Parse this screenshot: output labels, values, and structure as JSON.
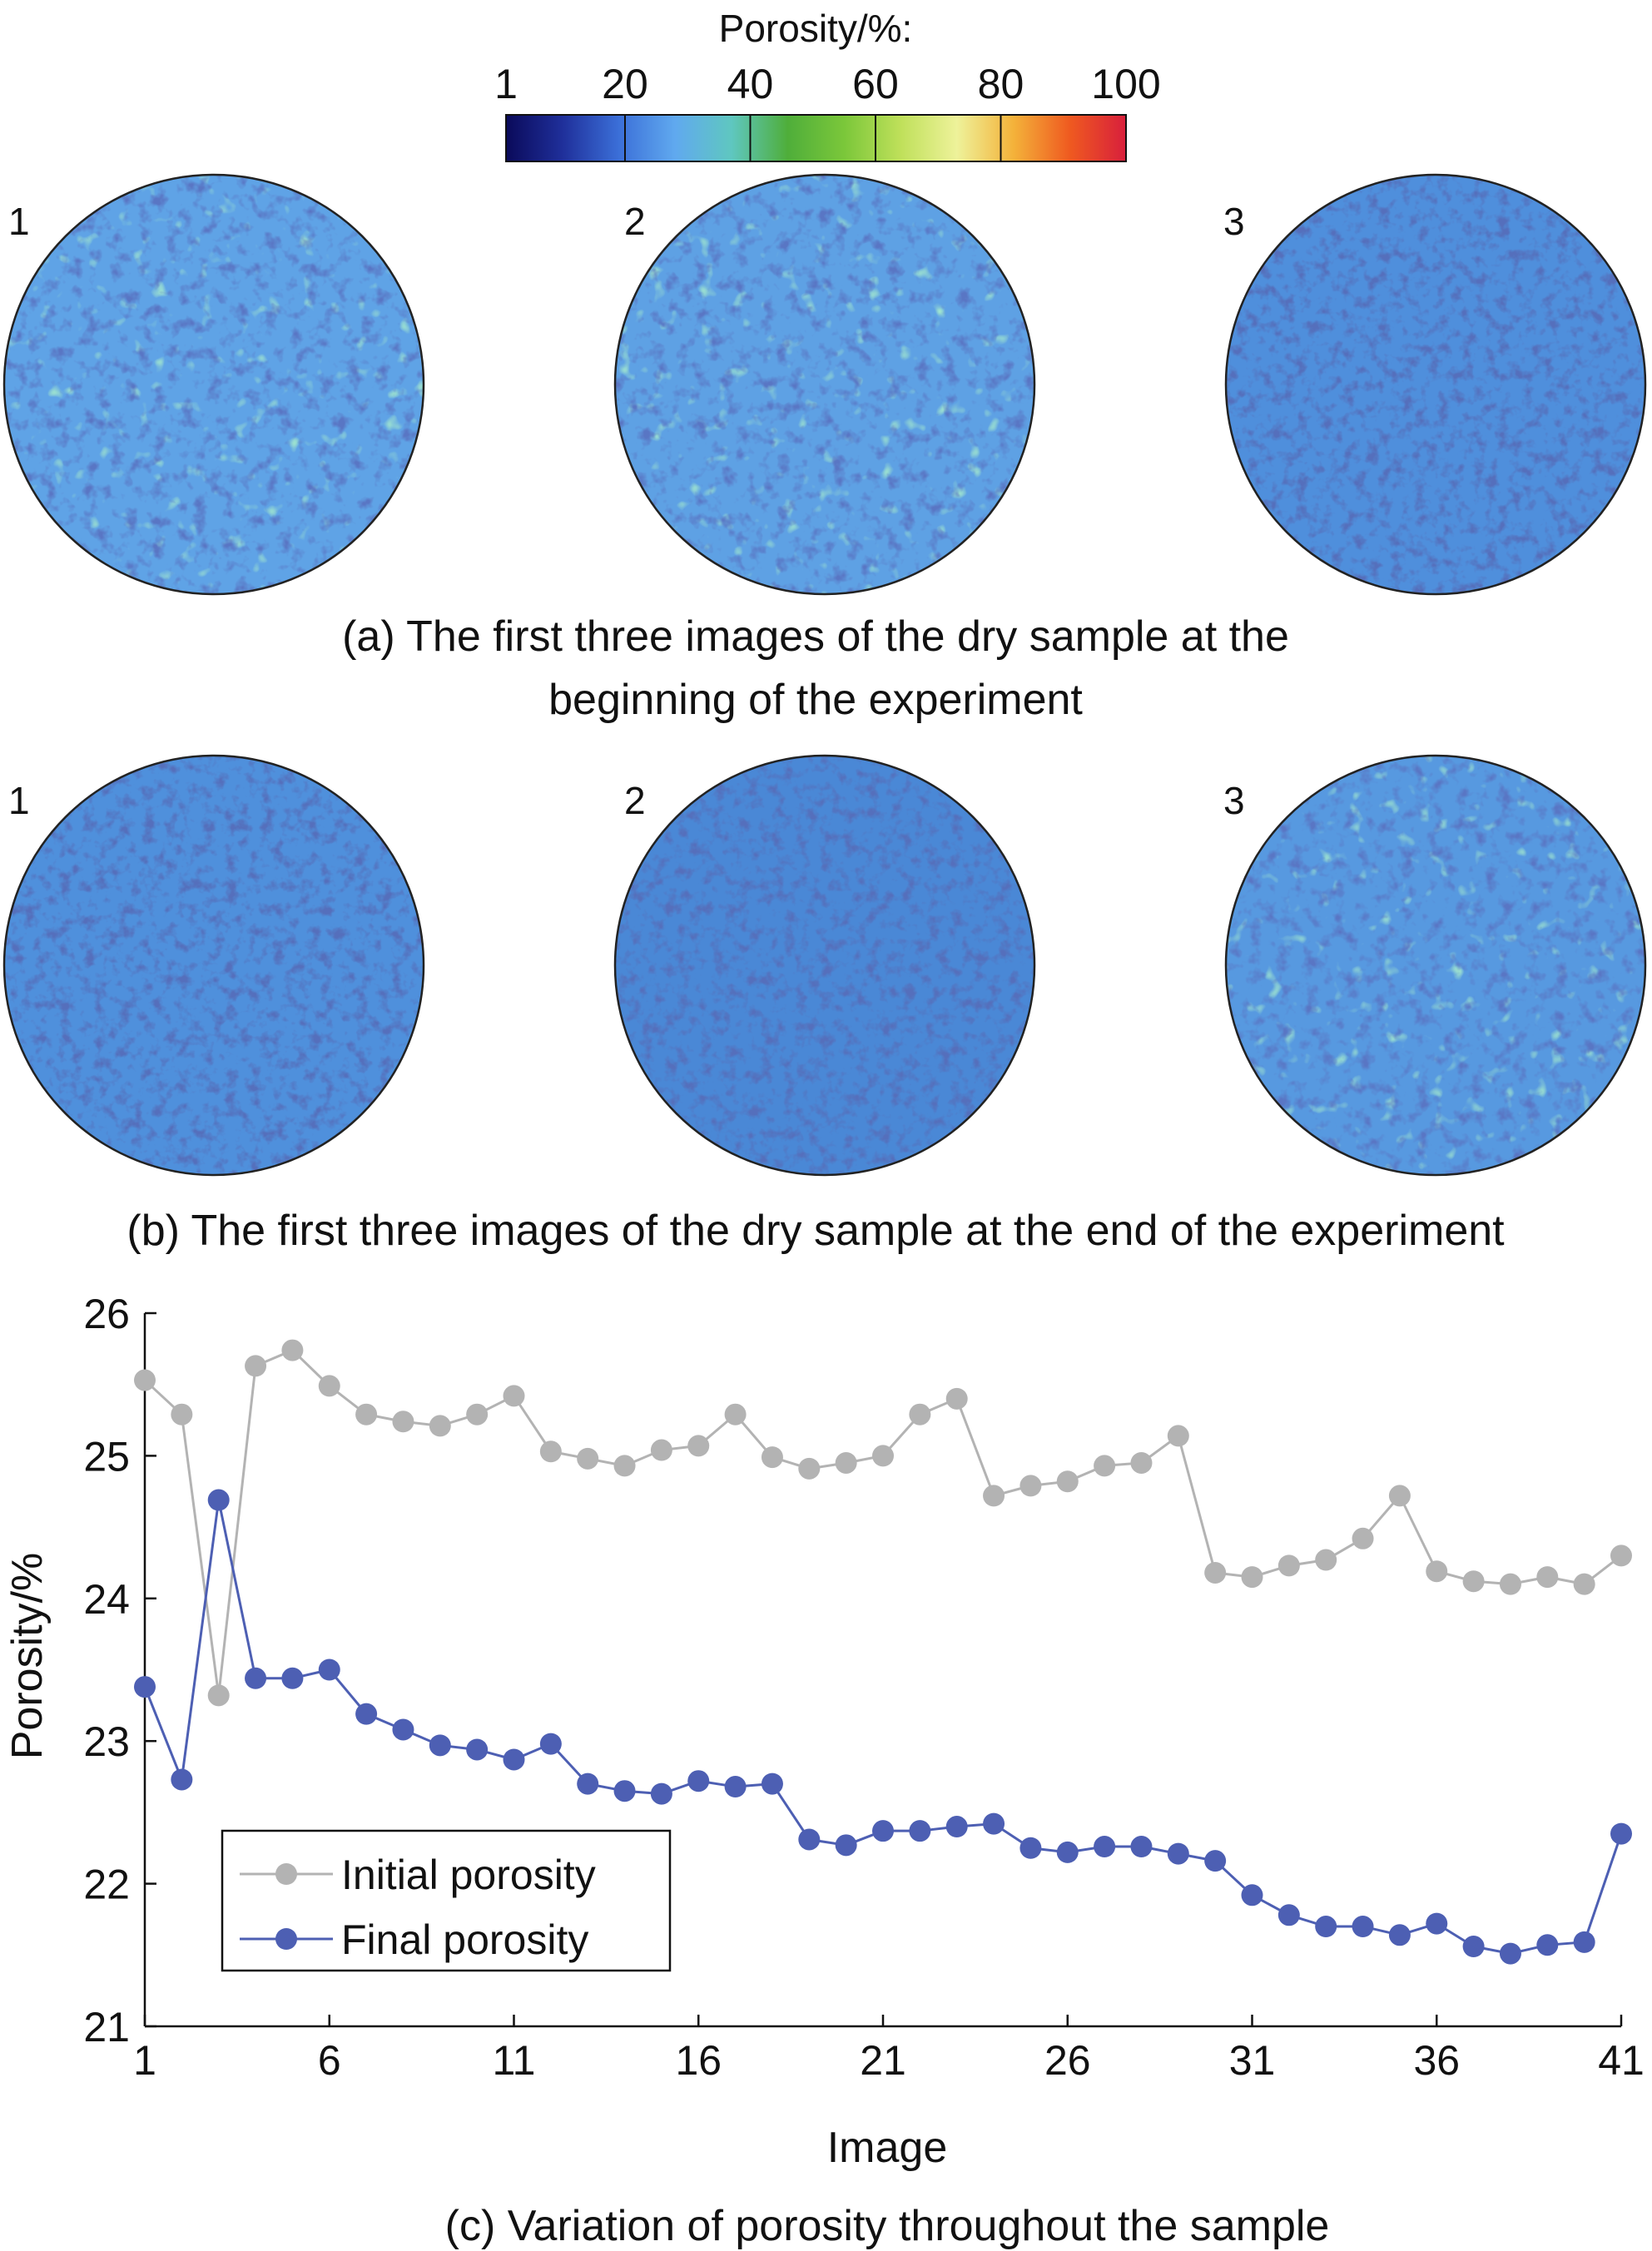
{
  "colorbar": {
    "title": "Porosity/%:",
    "ticks": [
      "1",
      "20",
      "40",
      "60",
      "80",
      "100"
    ],
    "colors": [
      "#0a0a5a",
      "#1f2f9a",
      "#3b6fd8",
      "#60a9ef",
      "#5fc7c0",
      "#4fae3a",
      "#7bc73a",
      "#bfe05a",
      "#eef29a",
      "#f4b23a",
      "#ef5a20",
      "#d81f3c"
    ]
  },
  "panel_a": {
    "caption_line1": "(a) The first three images of the dry sample at the",
    "caption_line2": "beginning of the experiment",
    "images": [
      {
        "label": "1"
      },
      {
        "label": "2"
      },
      {
        "label": "3"
      }
    ]
  },
  "panel_b": {
    "caption": "(b) The first three images of the dry sample at the end of the experiment",
    "images": [
      {
        "label": "1"
      },
      {
        "label": "2"
      },
      {
        "label": "3"
      }
    ]
  },
  "panel_c": {
    "caption": "(c) Variation of porosity throughout the sample"
  },
  "chart_data": {
    "type": "line",
    "xlabel": "Image",
    "ylabel": "Porosity/%",
    "xlim": [
      1,
      41
    ],
    "ylim": [
      21,
      26
    ],
    "xticks": [
      1,
      6,
      11,
      16,
      21,
      26,
      31,
      36,
      41
    ],
    "yticks": [
      21,
      22,
      23,
      24,
      25,
      26
    ],
    "legend_position": "bottom-left",
    "x": [
      1,
      2,
      3,
      4,
      5,
      6,
      7,
      8,
      9,
      10,
      11,
      12,
      13,
      14,
      15,
      16,
      17,
      18,
      19,
      20,
      21,
      22,
      23,
      24,
      25,
      26,
      27,
      28,
      29,
      30,
      31,
      32,
      33,
      34,
      35,
      36,
      37,
      38,
      39,
      40,
      41
    ],
    "series": [
      {
        "name": "Initial porosity",
        "color": "#b3b3b3",
        "values": [
          25.53,
          25.29,
          23.32,
          25.63,
          25.74,
          25.49,
          25.29,
          25.24,
          25.21,
          25.29,
          25.42,
          25.03,
          24.98,
          24.93,
          25.04,
          25.07,
          25.29,
          24.99,
          24.91,
          24.95,
          25.0,
          25.29,
          25.4,
          24.72,
          24.79,
          24.82,
          24.93,
          24.95,
          25.14,
          24.18,
          24.15,
          24.23,
          24.27,
          24.42,
          24.72,
          24.19,
          24.12,
          24.1,
          24.15,
          24.1,
          24.3
        ]
      },
      {
        "name": "Final porosity",
        "color": "#4d5fb3",
        "values": [
          23.38,
          22.73,
          24.69,
          23.44,
          23.44,
          23.5,
          23.19,
          23.08,
          22.97,
          22.94,
          22.87,
          22.98,
          22.7,
          22.65,
          22.63,
          22.72,
          22.68,
          22.7,
          22.31,
          22.27,
          22.37,
          22.37,
          22.4,
          22.42,
          22.25,
          22.22,
          22.26,
          22.26,
          22.21,
          22.16,
          21.92,
          21.78,
          21.7,
          21.7,
          21.64,
          21.72,
          21.56,
          21.51,
          21.57,
          21.59,
          22.35
        ]
      }
    ]
  }
}
